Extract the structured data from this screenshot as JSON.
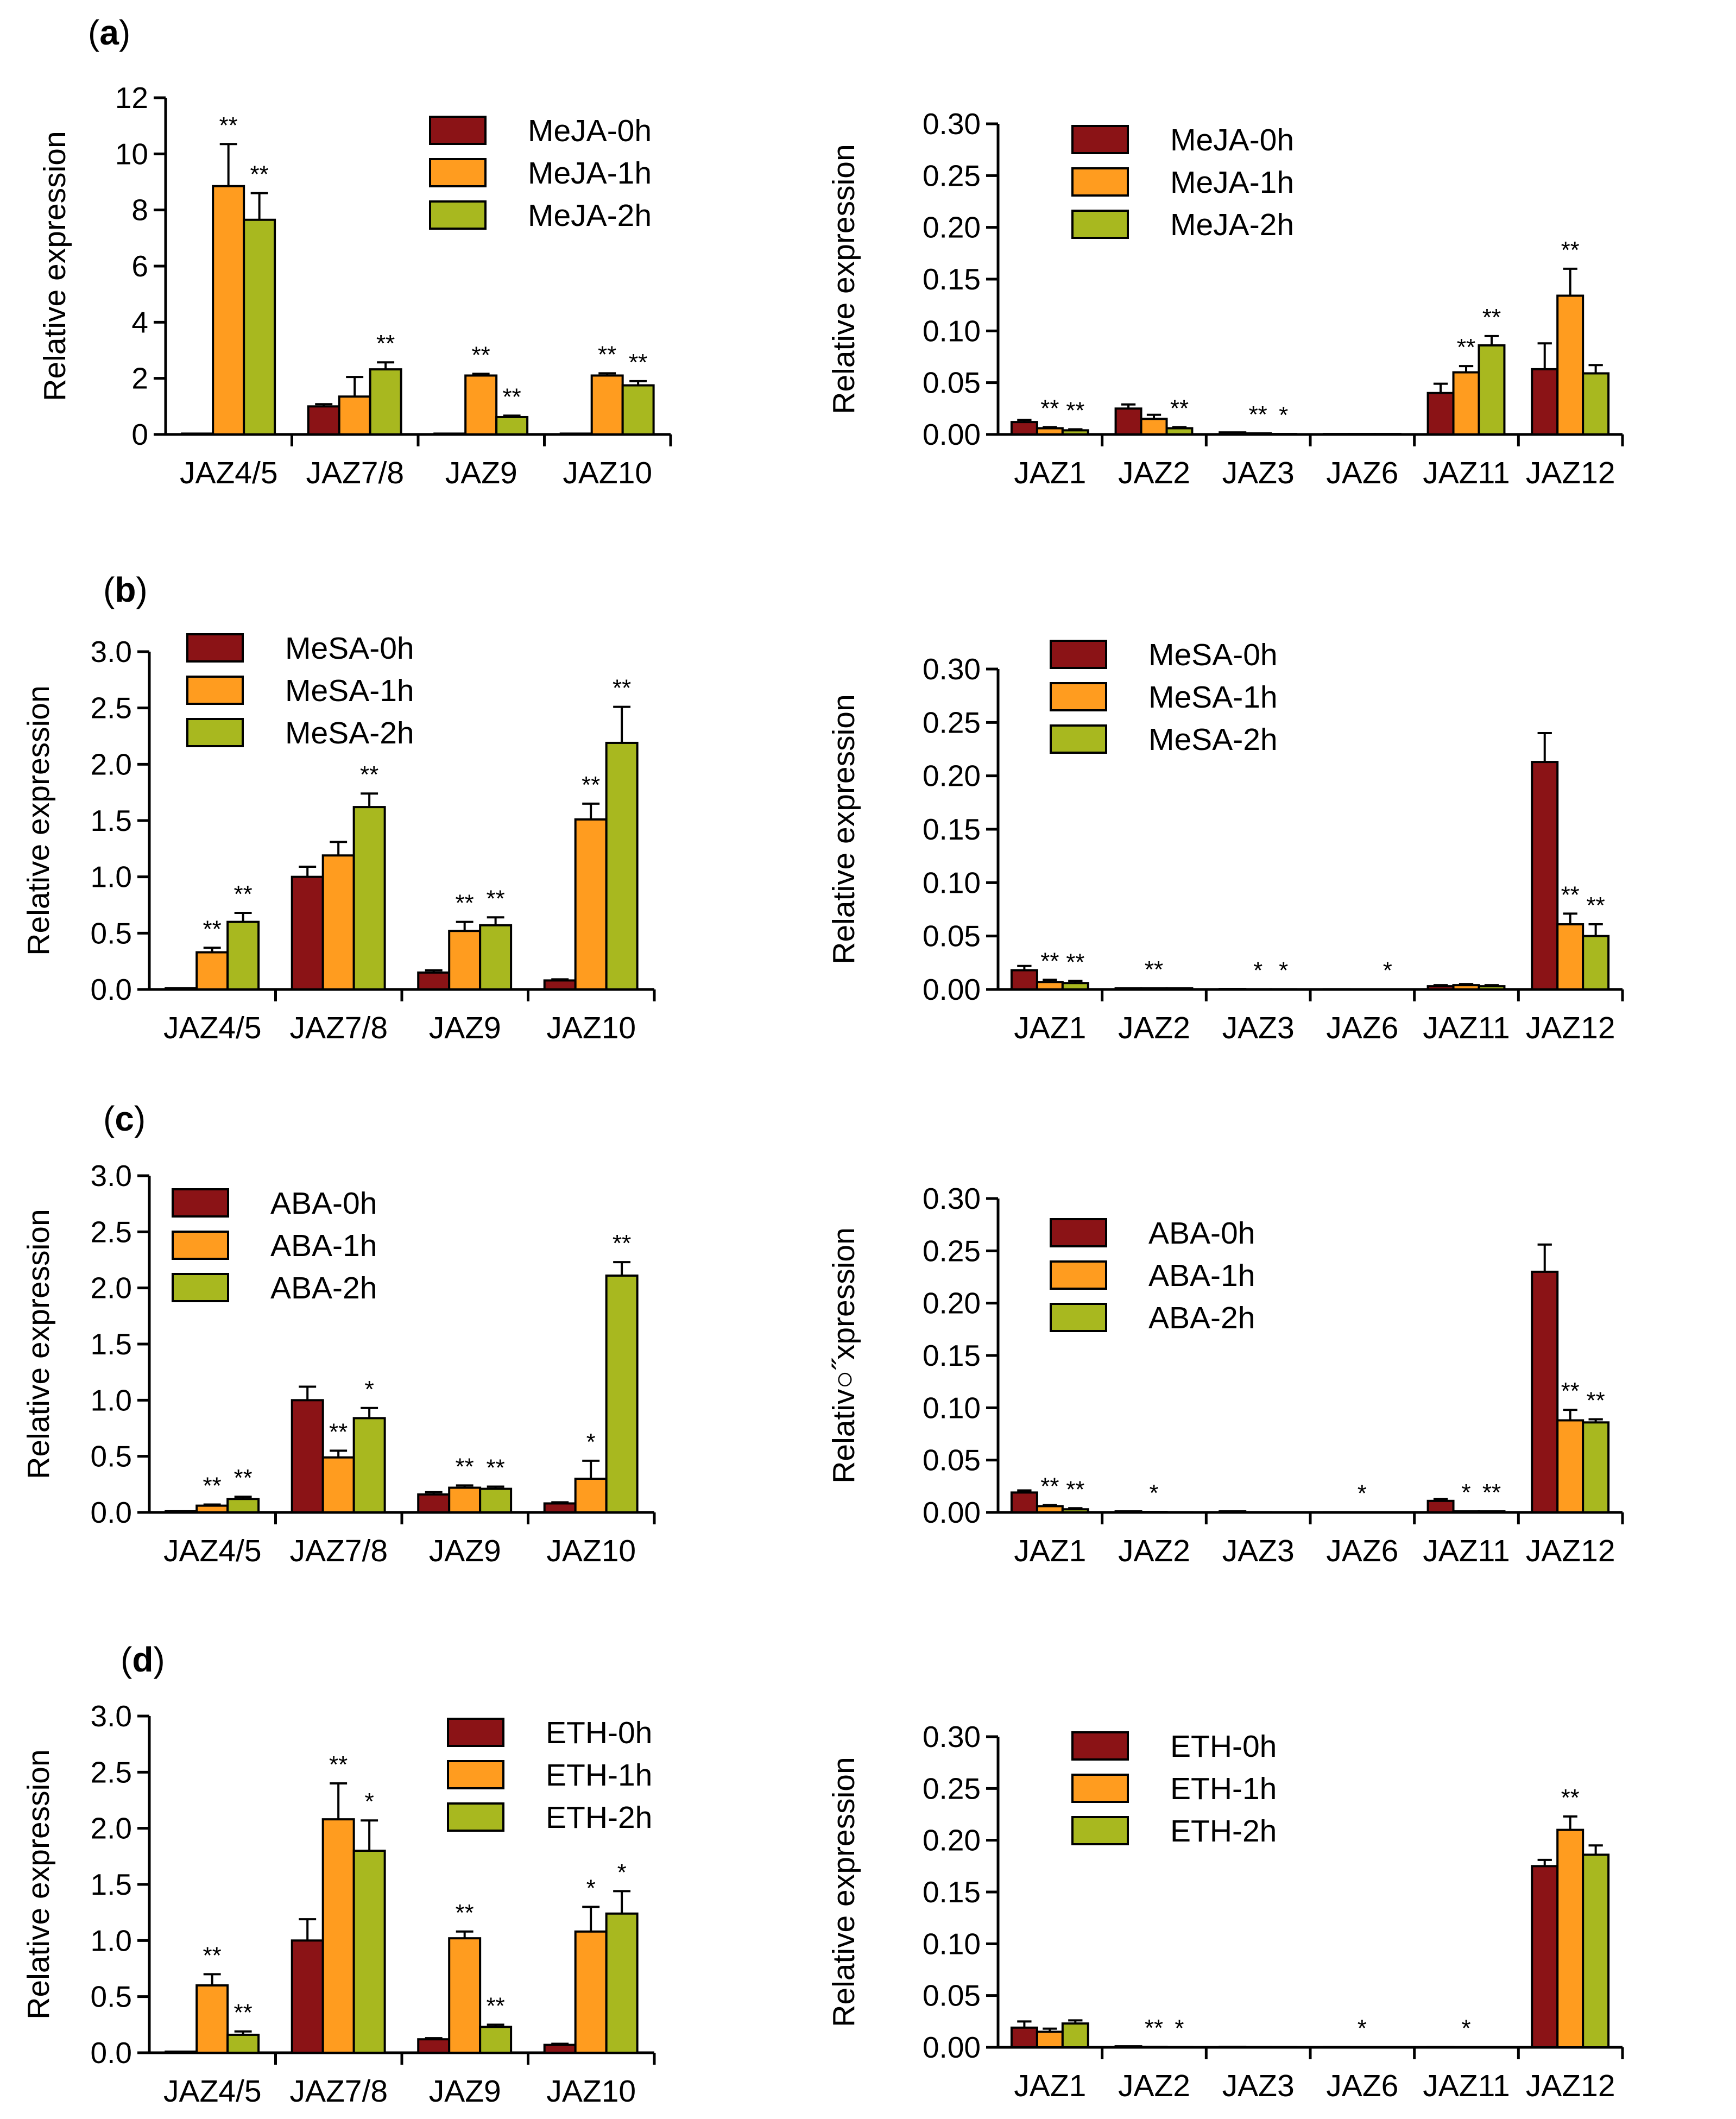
{
  "colors": {
    "h0": "#8b1316",
    "h1": "#ff9c1f",
    "h2": "#a8b81f"
  },
  "panels": [
    {
      "label": "a",
      "treatment": "MeJA"
    },
    {
      "label": "b",
      "treatment": "MeSA"
    },
    {
      "label": "c",
      "treatment": "ABA"
    },
    {
      "label": "d",
      "treatment": "ETH"
    }
  ],
  "chart_data": [
    {
      "id": "a-left",
      "type": "bar",
      "panel": "a",
      "legend": "top-right",
      "ylabel": "Relative expression",
      "ylim": [
        0,
        12
      ],
      "yticks": [
        "0",
        "2",
        "4",
        "6",
        "8",
        "10",
        "12"
      ],
      "categories": [
        "JAZ4/5",
        "JAZ7/8",
        "JAZ9",
        "JAZ10"
      ],
      "series": [
        {
          "name": "MeJA-0h",
          "values": [
            0.03,
            1.0,
            0.03,
            0.03
          ],
          "errors": [
            0.0,
            0.08,
            0.0,
            0.0
          ],
          "sig": [
            "",
            "",
            "",
            ""
          ]
        },
        {
          "name": "MeJA-1h",
          "values": [
            8.85,
            1.35,
            2.1,
            2.1
          ],
          "errors": [
            1.5,
            0.7,
            0.06,
            0.08
          ],
          "sig": [
            "**",
            "",
            "**",
            "**"
          ]
        },
        {
          "name": "MeJA-2h",
          "values": [
            7.65,
            2.32,
            0.62,
            1.75
          ],
          "errors": [
            0.95,
            0.25,
            0.05,
            0.15
          ],
          "sig": [
            "**",
            "**",
            "**",
            "**"
          ]
        }
      ]
    },
    {
      "id": "a-right",
      "type": "bar",
      "panel": "a",
      "legend": "top-left",
      "ylabel": "Relative expression",
      "ylim": [
        0,
        0.3
      ],
      "yticks": [
        "0.00",
        "0.05",
        "0.10",
        "0.15",
        "0.20",
        "0.25",
        "0.30"
      ],
      "categories": [
        "JAZ1",
        "JAZ2",
        "JAZ3",
        "JAZ6",
        "JAZ11",
        "JAZ12"
      ],
      "series": [
        {
          "name": "MeJA-0h",
          "values": [
            0.012,
            0.025,
            0.002,
            0.0005,
            0.04,
            0.063
          ],
          "errors": [
            0.002,
            0.004,
            0.0,
            0.0,
            0.009,
            0.025
          ],
          "sig": [
            "",
            "",
            "",
            "",
            "",
            ""
          ]
        },
        {
          "name": "MeJA-1h",
          "values": [
            0.006,
            0.015,
            0.001,
            0.0005,
            0.06,
            0.134
          ],
          "errors": [
            0.001,
            0.004,
            0.0,
            0.0,
            0.006,
            0.026
          ],
          "sig": [
            "**",
            "",
            "**",
            "",
            "**",
            "**"
          ]
        },
        {
          "name": "MeJA-2h",
          "values": [
            0.004,
            0.006,
            0.0005,
            0.0005,
            0.086,
            0.059
          ],
          "errors": [
            0.001,
            0.001,
            0.0,
            0.0,
            0.009,
            0.008
          ],
          "sig": [
            "**",
            "**",
            "*",
            "",
            "**",
            ""
          ]
        }
      ]
    },
    {
      "id": "b-left",
      "type": "bar",
      "panel": "b",
      "legend": "top-left",
      "ylabel": "Relative expression",
      "ylim": [
        0,
        3.0
      ],
      "yticks": [
        "0.0",
        "0.5",
        "1.0",
        "1.5",
        "2.0",
        "2.5",
        "3.0"
      ],
      "categories": [
        "JAZ4/5",
        "JAZ7/8",
        "JAZ9",
        "JAZ10"
      ],
      "series": [
        {
          "name": "MeSA-0h",
          "values": [
            0.01,
            1.0,
            0.15,
            0.08
          ],
          "errors": [
            0.0,
            0.09,
            0.02,
            0.01
          ],
          "sig": [
            "",
            "",
            "",
            ""
          ]
        },
        {
          "name": "MeSA-1h",
          "values": [
            0.33,
            1.19,
            0.52,
            1.51
          ],
          "errors": [
            0.04,
            0.12,
            0.08,
            0.14
          ],
          "sig": [
            "**",
            "",
            "**",
            "**"
          ]
        },
        {
          "name": "MeSA-2h",
          "values": [
            0.6,
            1.62,
            0.57,
            2.19
          ],
          "errors": [
            0.08,
            0.12,
            0.07,
            0.32
          ],
          "sig": [
            "**",
            "**",
            "**",
            "**"
          ]
        }
      ]
    },
    {
      "id": "b-right",
      "type": "bar",
      "panel": "b",
      "legend": "top-left",
      "ylabel": "Relative expression",
      "ylim": [
        0,
        0.3
      ],
      "yticks": [
        "0.00",
        "0.05",
        "0.10",
        "0.15",
        "0.20",
        "0.25",
        "0.30"
      ],
      "categories": [
        "JAZ1",
        "JAZ2",
        "JAZ3",
        "JAZ6",
        "JAZ11",
        "JAZ12"
      ],
      "series": [
        {
          "name": "MeSA-0h",
          "values": [
            0.018,
            0.001,
            0.0005,
            0.0003,
            0.003,
            0.213
          ],
          "errors": [
            0.004,
            0.0,
            0.0,
            0.0,
            0.001,
            0.027
          ],
          "sig": [
            "",
            "",
            "",
            "",
            "",
            ""
          ]
        },
        {
          "name": "MeSA-1h",
          "values": [
            0.007,
            0.001,
            0.0003,
            0.0002,
            0.004,
            0.061
          ],
          "errors": [
            0.002,
            0.0,
            0.0,
            0.0,
            0.001,
            0.01
          ],
          "sig": [
            "**",
            "**",
            "*",
            "",
            "",
            "**"
          ]
        },
        {
          "name": "MeSA-2h",
          "values": [
            0.006,
            0.001,
            0.0003,
            0.0002,
            0.003,
            0.05
          ],
          "errors": [
            0.002,
            0.0,
            0.0,
            0.0,
            0.001,
            0.011
          ],
          "sig": [
            "**",
            "",
            "*",
            "*",
            "",
            "**"
          ]
        }
      ]
    },
    {
      "id": "c-left",
      "type": "bar",
      "panel": "c",
      "legend": "top-left",
      "ylabel": "Relative expression",
      "ylim": [
        0,
        3.0
      ],
      "yticks": [
        "0.0",
        "0.5",
        "1.0",
        "1.5",
        "2.0",
        "2.5",
        "3.0"
      ],
      "categories": [
        "JAZ4/5",
        "JAZ7/8",
        "JAZ9",
        "JAZ10"
      ],
      "series": [
        {
          "name": "ABA-0h",
          "values": [
            0.01,
            1.0,
            0.16,
            0.08
          ],
          "errors": [
            0.0,
            0.12,
            0.02,
            0.01
          ],
          "sig": [
            "",
            "",
            "",
            ""
          ]
        },
        {
          "name": "ABA-1h",
          "values": [
            0.06,
            0.49,
            0.22,
            0.3
          ],
          "errors": [
            0.01,
            0.06,
            0.02,
            0.16
          ],
          "sig": [
            "**",
            "**",
            "**",
            "*"
          ]
        },
        {
          "name": "ABA-2h",
          "values": [
            0.12,
            0.84,
            0.21,
            2.11
          ],
          "errors": [
            0.02,
            0.09,
            0.02,
            0.12
          ],
          "sig": [
            "**",
            "*",
            "**",
            "**"
          ]
        }
      ]
    },
    {
      "id": "c-right",
      "type": "bar",
      "panel": "c",
      "legend": "top-left",
      "ylabel": "Relativ○˝xpression",
      "ylim": [
        0,
        0.3
      ],
      "yticks": [
        "0.00",
        "0.05",
        "0.10",
        "0.15",
        "0.20",
        "0.25",
        "0.30"
      ],
      "categories": [
        "JAZ1",
        "JAZ2",
        "JAZ3",
        "JAZ6",
        "JAZ11",
        "JAZ12"
      ],
      "series": [
        {
          "name": "ABA-0h",
          "values": [
            0.019,
            0.001,
            0.001,
            0.0003,
            0.011,
            0.23
          ],
          "errors": [
            0.002,
            0.0,
            0.0,
            0.0,
            0.002,
            0.026
          ],
          "sig": [
            "",
            "",
            "",
            "",
            "",
            ""
          ]
        },
        {
          "name": "ABA-1h",
          "values": [
            0.006,
            0.0005,
            0.0003,
            0.0002,
            0.001,
            0.088
          ],
          "errors": [
            0.001,
            0.0,
            0.0,
            0.0,
            0.0,
            0.01
          ],
          "sig": [
            "**",
            "*",
            "",
            "*",
            "*",
            "**"
          ]
        },
        {
          "name": "ABA-2h",
          "values": [
            0.003,
            0.0003,
            0.0002,
            0.0002,
            0.001,
            0.086
          ],
          "errors": [
            0.001,
            0.0,
            0.0,
            0.0,
            0.0,
            0.003
          ],
          "sig": [
            "**",
            "",
            "",
            "",
            "**",
            "**"
          ]
        }
      ]
    },
    {
      "id": "d-left",
      "type": "bar",
      "panel": "d",
      "legend": "top-right",
      "ylabel": "Relative expression",
      "ylim": [
        0,
        3.0
      ],
      "yticks": [
        "0.0",
        "0.5",
        "1.0",
        "1.5",
        "2.0",
        "2.5",
        "3.0"
      ],
      "categories": [
        "JAZ4/5",
        "JAZ7/8",
        "JAZ9",
        "JAZ10"
      ],
      "series": [
        {
          "name": "ETH-0h",
          "values": [
            0.01,
            1.0,
            0.12,
            0.07
          ],
          "errors": [
            0.0,
            0.19,
            0.01,
            0.01
          ],
          "sig": [
            "",
            "",
            "",
            ""
          ]
        },
        {
          "name": "ETH-1h",
          "values": [
            0.6,
            2.08,
            1.02,
            1.08
          ],
          "errors": [
            0.1,
            0.32,
            0.06,
            0.22
          ],
          "sig": [
            "**",
            "**",
            "**",
            "*"
          ]
        },
        {
          "name": "ETH-2h",
          "values": [
            0.16,
            1.8,
            0.23,
            1.24
          ],
          "errors": [
            0.03,
            0.27,
            0.02,
            0.2
          ],
          "sig": [
            "**",
            "*",
            "**",
            "*"
          ]
        }
      ]
    },
    {
      "id": "d-right",
      "type": "bar",
      "panel": "d",
      "legend": "top-left",
      "ylabel": "Relative expression",
      "ylim": [
        0,
        0.3
      ],
      "yticks": [
        "0.00",
        "0.05",
        "0.10",
        "0.15",
        "0.20",
        "0.25",
        "0.30"
      ],
      "categories": [
        "JAZ1",
        "JAZ2",
        "JAZ3",
        "JAZ6",
        "JAZ11",
        "JAZ12"
      ],
      "series": [
        {
          "name": "ETH-0h",
          "values": [
            0.019,
            0.001,
            0.0005,
            0.0003,
            0.0003,
            0.175
          ],
          "errors": [
            0.006,
            0.0,
            0.0,
            0.0,
            0.0,
            0.006
          ],
          "sig": [
            "",
            "",
            "",
            "",
            "",
            ""
          ]
        },
        {
          "name": "ETH-1h",
          "values": [
            0.015,
            0.0005,
            0.0003,
            0.0002,
            0.0002,
            0.21
          ],
          "errors": [
            0.003,
            0.0,
            0.0,
            0.0,
            0.0,
            0.013
          ],
          "sig": [
            "",
            "**",
            "",
            "*",
            "*",
            "**"
          ]
        },
        {
          "name": "ETH-2h",
          "values": [
            0.023,
            0.0003,
            0.0003,
            0.0002,
            0.0002,
            0.186
          ],
          "errors": [
            0.003,
            0.0,
            0.0,
            0.0,
            0.0,
            0.009
          ],
          "sig": [
            "",
            "*",
            "",
            "",
            "",
            ""
          ]
        }
      ]
    }
  ]
}
